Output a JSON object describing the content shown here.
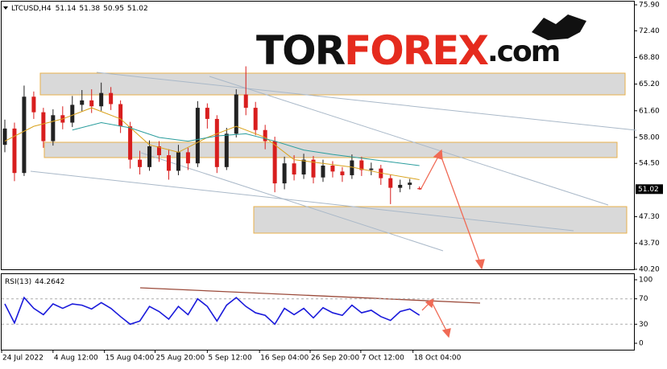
{
  "logo": {
    "parts": [
      "TOR",
      "FOREX",
      ".com"
    ]
  },
  "chart_data": {
    "type": "candlestick",
    "symbol": "LTCUSD,H4",
    "x": [
      4,
      16,
      28,
      40,
      52,
      64,
      76,
      88,
      100,
      112,
      124,
      136,
      148,
      160,
      172,
      184,
      196,
      208,
      220,
      232,
      244,
      256,
      268,
      280,
      292,
      304,
      316,
      328,
      340,
      352,
      364,
      376,
      388,
      400,
      412,
      424,
      436,
      448,
      460,
      472,
      484,
      496,
      508,
      520
    ],
    "open": [
      57.0,
      59.2,
      53.2,
      63.5,
      61.4,
      57.5,
      61.0,
      60.0,
      62.4,
      63.0,
      62.2,
      64.0,
      62.5,
      59.5,
      55.0,
      54.0,
      56.8,
      55.6,
      53.5,
      56.0,
      54.5,
      62.0,
      60.5,
      54.0,
      58.5,
      63.8,
      62.0,
      59.0,
      57.5,
      51.8,
      54.5,
      53.0,
      55.0,
      52.6,
      54.2,
      53.4,
      52.9,
      54.9,
      53.6,
      53.8,
      52.5,
      51.2,
      51.6,
      51.14
    ],
    "high": [
      60.4,
      60.0,
      65.0,
      64.2,
      62.0,
      61.8,
      62.2,
      63.6,
      64.4,
      64.5,
      65.4,
      64.8,
      63.0,
      60.1,
      56.2,
      57.6,
      57.5,
      56.4,
      57.0,
      56.6,
      62.9,
      62.6,
      61.0,
      59.3,
      64.5,
      67.6,
      62.8,
      59.7,
      58.1,
      55.4,
      55.6,
      55.8,
      55.5,
      55.0,
      54.8,
      54.0,
      55.7,
      55.4,
      54.6,
      54.3,
      53.0,
      52.3,
      52.4,
      51.38
    ],
    "low": [
      56.0,
      52.1,
      52.8,
      60.5,
      56.6,
      56.9,
      59.1,
      59.4,
      61.5,
      61.3,
      61.6,
      61.7,
      58.6,
      53.8,
      53.0,
      53.5,
      54.7,
      52.3,
      52.9,
      53.6,
      54.0,
      59.2,
      53.2,
      53.6,
      58.0,
      61.0,
      58.3,
      56.4,
      50.6,
      51.0,
      52.2,
      52.4,
      51.8,
      52.0,
      52.6,
      52.0,
      52.4,
      52.8,
      52.9,
      51.6,
      49.0,
      50.6,
      51.0,
      50.95
    ],
    "close": [
      59.2,
      53.2,
      63.5,
      61.4,
      57.5,
      61.0,
      60.0,
      62.4,
      63.0,
      62.2,
      64.0,
      62.5,
      59.5,
      55.0,
      54.0,
      56.8,
      55.6,
      53.5,
      56.0,
      54.5,
      62.0,
      60.5,
      54.0,
      58.5,
      63.8,
      62.0,
      59.0,
      57.5,
      51.8,
      54.5,
      53.0,
      55.0,
      52.6,
      54.2,
      53.4,
      52.9,
      54.9,
      53.6,
      53.8,
      52.5,
      51.2,
      51.6,
      51.9,
      51.02
    ],
    "up_color": "#222222",
    "down_color": "#d81e1e",
    "overlays": [
      {
        "color": "#d9a21b",
        "x": [
          4,
          40,
          76,
          112,
          148,
          184,
          220,
          256,
          292,
          328,
          364,
          400,
          436,
          472,
          520
        ],
        "values": [
          57.5,
          59.5,
          60.5,
          62.0,
          60.5,
          57.0,
          56.0,
          58.0,
          59.5,
          58.0,
          55.0,
          54.5,
          54.0,
          53.2,
          52.3
        ]
      },
      {
        "color": "#2a9d9d",
        "x": [
          88,
          124,
          160,
          196,
          232,
          268,
          304,
          340,
          376,
          412,
          448,
          484,
          520
        ],
        "values": [
          59.0,
          60.0,
          59.3,
          58.0,
          57.5,
          58.2,
          58.5,
          57.5,
          56.3,
          55.7,
          55.2,
          54.7,
          54.2
        ]
      }
    ],
    "xlim": [
      0,
      788
    ],
    "xticks": [
      {
        "value": 0,
        "label": "24 Jul 2022"
      },
      {
        "value": 64,
        "label": "4 Aug 12:00"
      },
      {
        "value": 128,
        "label": "15 Aug 04:00"
      },
      {
        "value": 191,
        "label": "25 Aug 20:00"
      },
      {
        "value": 256,
        "label": "5 Sep 12:00"
      },
      {
        "value": 321,
        "label": "16 Sep 04:00"
      },
      {
        "value": 384,
        "label": "26 Sep 20:00"
      },
      {
        "value": 447,
        "label": "7 Oct 12:00"
      },
      {
        "value": 512,
        "label": "18 Oct 04:00"
      }
    ],
    "ylim": [
      40.2,
      75.9
    ],
    "yticks": [
      {
        "value": 75.9,
        "label": "75.90"
      },
      {
        "value": 72.4,
        "label": "72.40"
      },
      {
        "value": 68.8,
        "label": "68.80"
      },
      {
        "value": 65.2,
        "label": "65.20"
      },
      {
        "value": 61.6,
        "label": "61.60"
      },
      {
        "value": 58.0,
        "label": "58.00"
      },
      {
        "value": 54.5,
        "label": "54.50"
      },
      {
        "value": 47.3,
        "label": "47.30"
      },
      {
        "value": 43.7,
        "label": "43.70"
      },
      {
        "value": 40.2,
        "label": "40.20"
      }
    ],
    "rsi": {
      "label": "RSI(13)",
      "color": "#1a1adb",
      "values": [
        62,
        32,
        72,
        55,
        45,
        62,
        55,
        62,
        60,
        54,
        64,
        55,
        42,
        30,
        35,
        58,
        50,
        38,
        58,
        45,
        70,
        58,
        35,
        60,
        72,
        58,
        48,
        44,
        30,
        55,
        45,
        55,
        40,
        56,
        48,
        44,
        60,
        48,
        52,
        42,
        36,
        50,
        54,
        44.2642
      ],
      "ylim": [
        0,
        100
      ],
      "yticks": [
        0,
        30,
        70,
        100
      ],
      "dashed_levels": [
        30,
        70
      ]
    }
  }
}
